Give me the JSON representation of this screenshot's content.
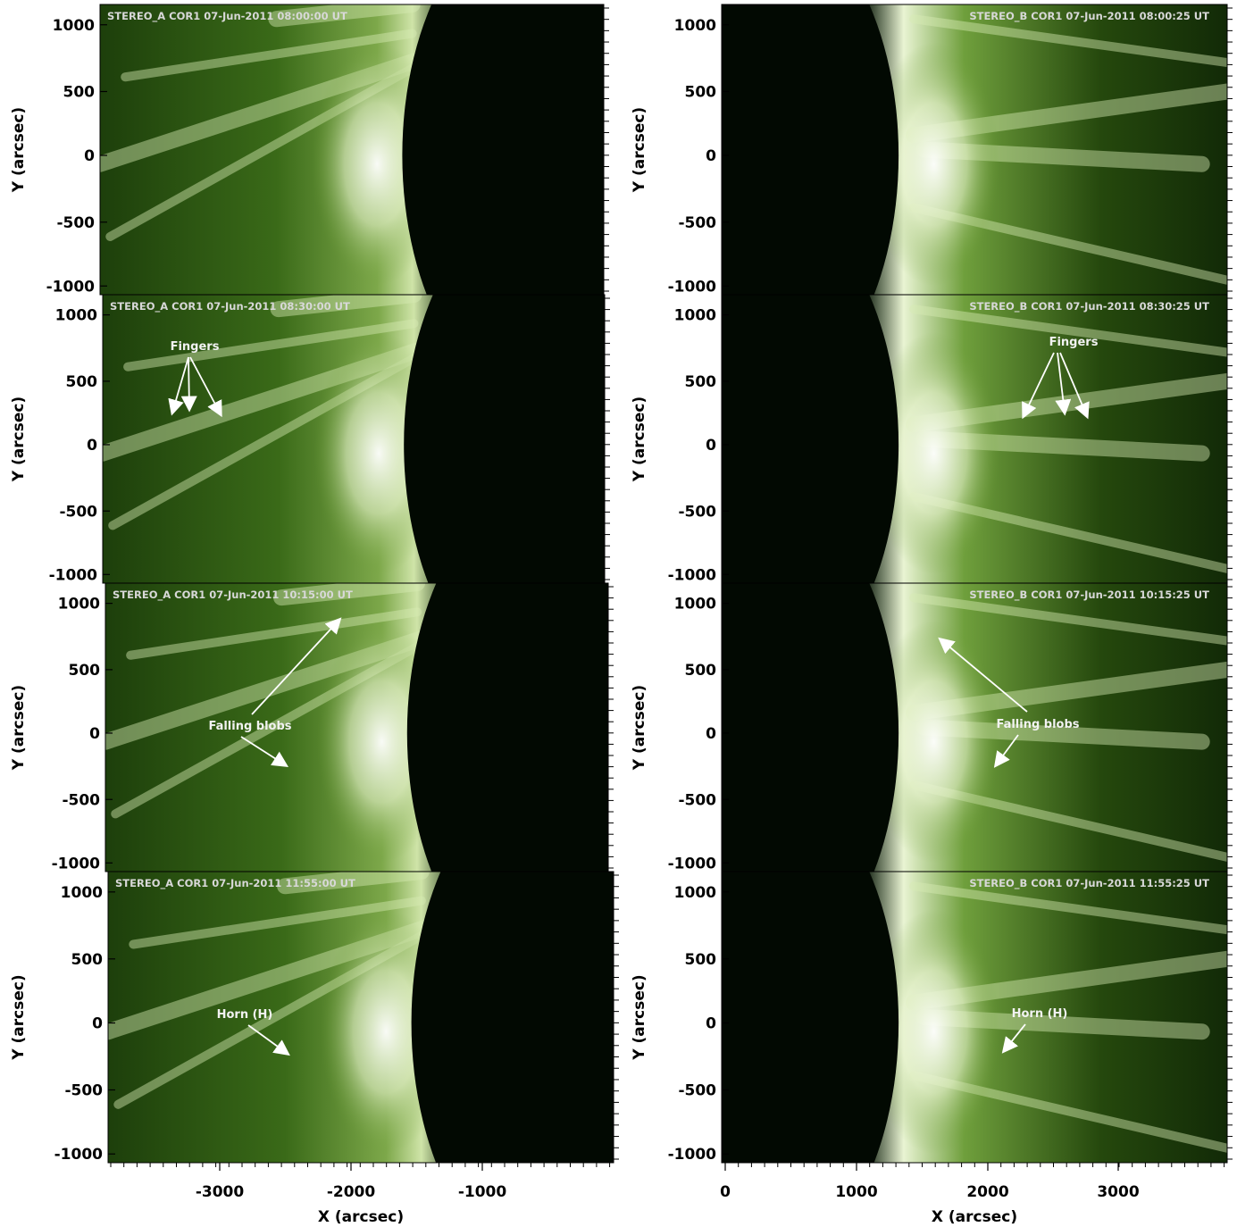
{
  "figure": {
    "left_column": {
      "spacecraft": "STEREO_A",
      "x_ticks": [
        "-3000",
        "-2000",
        "-1000"
      ],
      "x_label": "X (arcsec)"
    },
    "right_column": {
      "spacecraft": "STEREO_B",
      "x_ticks": [
        "0",
        "1000",
        "2000",
        "3000"
      ],
      "x_label": "X (arcsec)"
    },
    "y_ticks": [
      "1000",
      "500",
      "0",
      "-500",
      "-1000"
    ],
    "y_label": "Y (arcsec)",
    "panels": [
      {
        "title": "STEREO_A COR1 07-Jun-2011 08:00:00 UT",
        "annotation": ""
      },
      {
        "title": "STEREO_B COR1 07-Jun-2011 08:00:25 UT",
        "annotation": ""
      },
      {
        "title": "STEREO_A COR1 07-Jun-2011 08:30:00 UT",
        "annotation": "Fingers"
      },
      {
        "title": "STEREO_B COR1 07-Jun-2011 08:30:25 UT",
        "annotation": "Fingers"
      },
      {
        "title": "STEREO_A COR1 07-Jun-2011 10:15:00 UT",
        "annotation": "Falling blobs"
      },
      {
        "title": "STEREO_B COR1 07-Jun-2011 10:15:25 UT",
        "annotation": "Falling blobs"
      },
      {
        "title": "STEREO_A COR1 07-Jun-2011 11:55:00 UT",
        "annotation": "Horn (H)"
      },
      {
        "title": "STEREO_B COR1 07-Jun-2011 11:55:25 UT",
        "annotation": "Horn (H)"
      }
    ],
    "colors": {
      "occulter": "#020902",
      "coronal_dark": "#0a2005",
      "coronal_mid": "#2f5a14",
      "coronal_bright": "#eef7dc",
      "annotation": "#ffffff"
    }
  }
}
